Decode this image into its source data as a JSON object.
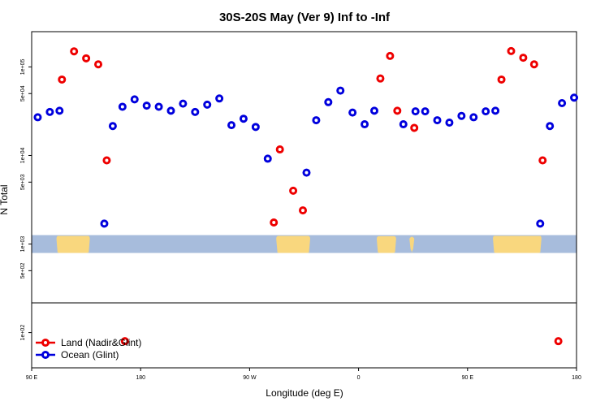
{
  "chart_data": {
    "type": "scatter",
    "title": "30S-20S May (Ver 9)   Inf to -Inf",
    "xlabel": "Longitude (deg E)",
    "ylabel": "N Total",
    "x_scale": "longitude-wrapped",
    "x_ticks": [
      {
        "lon": -270,
        "label": "90 E"
      },
      {
        "lon": -180,
        "label": "180"
      },
      {
        "lon": -90,
        "label": "90 W"
      },
      {
        "lon": 0,
        "label": "0"
      },
      {
        "lon": 90,
        "label": "90 E"
      },
      {
        "lon": 180,
        "label": "180"
      }
    ],
    "xlim": [
      -270,
      180
    ],
    "y_scale": "log",
    "ylim": [
      40,
      250000
    ],
    "y_ticks": [
      {
        "value": 100,
        "label": "1e+02"
      },
      {
        "value": 500,
        "label": "5e+02"
      },
      {
        "value": 1000,
        "label": "1e+03"
      },
      {
        "value": 5000,
        "label": "5e+03"
      },
      {
        "value": 10000,
        "label": "1e+04"
      },
      {
        "value": 50000,
        "label": "5e+04"
      },
      {
        "value": 100000,
        "label": "1e+05"
      }
    ],
    "grid": false,
    "legend_position": "bottom-left",
    "map_strip": {
      "band_value": 1000,
      "ocean_color": "#a7bcdc",
      "land_color": "#f9d77e"
    },
    "series": [
      {
        "name": "Land (Nadir&Glint)",
        "color": "#ee0000",
        "points": [
          {
            "x": -245,
            "y": 72000
          },
          {
            "x": -235,
            "y": 150000
          },
          {
            "x": -225,
            "y": 125000
          },
          {
            "x": -215,
            "y": 107000
          },
          {
            "x": -208,
            "y": 8800
          },
          {
            "x": -193,
            "y": 80
          },
          {
            "x": -70,
            "y": 1750
          },
          {
            "x": -65,
            "y": 11700
          },
          {
            "x": -54,
            "y": 4000
          },
          {
            "x": -46,
            "y": 2400
          },
          {
            "x": 18,
            "y": 74000
          },
          {
            "x": 26,
            "y": 133000
          },
          {
            "x": 32,
            "y": 32000
          },
          {
            "x": 46,
            "y": 20500
          },
          {
            "x": 118,
            "y": 72000
          },
          {
            "x": 126,
            "y": 151000
          },
          {
            "x": 136,
            "y": 127000
          },
          {
            "x": 145,
            "y": 107000
          },
          {
            "x": 152,
            "y": 8800
          },
          {
            "x": 165,
            "y": 80
          }
        ]
      },
      {
        "name": "Ocean (Glint)",
        "color": "#0000dd",
        "points": [
          {
            "x": -265,
            "y": 27000
          },
          {
            "x": -255,
            "y": 31000
          },
          {
            "x": -247,
            "y": 32000
          },
          {
            "x": -210,
            "y": 1700
          },
          {
            "x": -203,
            "y": 21500
          },
          {
            "x": -195,
            "y": 35500
          },
          {
            "x": -185,
            "y": 43000
          },
          {
            "x": -175,
            "y": 36500
          },
          {
            "x": -165,
            "y": 35500
          },
          {
            "x": -155,
            "y": 32000
          },
          {
            "x": -145,
            "y": 38500
          },
          {
            "x": -135,
            "y": 31000
          },
          {
            "x": -125,
            "y": 37500
          },
          {
            "x": -115,
            "y": 44000
          },
          {
            "x": -105,
            "y": 22000
          },
          {
            "x": -95,
            "y": 26000
          },
          {
            "x": -85,
            "y": 21000
          },
          {
            "x": -75,
            "y": 9200
          },
          {
            "x": -43,
            "y": 6400
          },
          {
            "x": -35,
            "y": 25000
          },
          {
            "x": -25,
            "y": 40000
          },
          {
            "x": -15,
            "y": 54000
          },
          {
            "x": -5,
            "y": 30500
          },
          {
            "x": 5,
            "y": 22500
          },
          {
            "x": 13,
            "y": 32000
          },
          {
            "x": 37,
            "y": 22500
          },
          {
            "x": 47,
            "y": 31500
          },
          {
            "x": 55,
            "y": 31500
          },
          {
            "x": 65,
            "y": 25000
          },
          {
            "x": 75,
            "y": 23500
          },
          {
            "x": 85,
            "y": 28000
          },
          {
            "x": 95,
            "y": 27000
          },
          {
            "x": 105,
            "y": 31500
          },
          {
            "x": 113,
            "y": 32000
          },
          {
            "x": 150,
            "y": 1700
          },
          {
            "x": 158,
            "y": 21500
          },
          {
            "x": 168,
            "y": 39000
          },
          {
            "x": 178,
            "y": 45000
          }
        ]
      }
    ]
  }
}
